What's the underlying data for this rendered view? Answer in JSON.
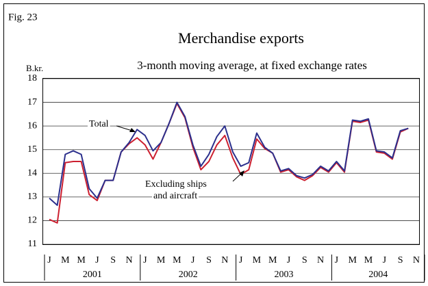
{
  "chart_data": {
    "type": "line",
    "figure_label": "Fig. 23",
    "title": "Merchandise exports",
    "subtitle": "3-month moving average, at fixed exchange rates",
    "y_unit": "B.kr.",
    "categories": [
      "J",
      null,
      "M",
      null,
      "M",
      null,
      "J",
      null,
      "S",
      null,
      "N",
      null,
      "J",
      null,
      "M",
      null,
      "M",
      null,
      "J",
      null,
      "S",
      null,
      "N",
      null,
      "J",
      null,
      "M",
      null,
      "M",
      null,
      "J",
      null,
      "S",
      null,
      "N",
      null,
      "J",
      null,
      "M",
      null,
      "M",
      null,
      "J",
      null,
      "S",
      null,
      "N"
    ],
    "years": [
      "2001",
      "2002",
      "2003",
      "2004"
    ],
    "series": [
      {
        "color": "#2b2f8c",
        "values": [
          12.95,
          12.65,
          14.8,
          14.95,
          14.8,
          13.35,
          12.95,
          13.7,
          13.7,
          14.9,
          15.3,
          15.85,
          15.6,
          14.95,
          15.3,
          16.1,
          17.0,
          16.4,
          15.2,
          14.3,
          14.8,
          15.55,
          16.0,
          14.9,
          14.3,
          14.45,
          15.7,
          15.1,
          14.85,
          14.1,
          14.2,
          13.9,
          13.8,
          13.95,
          14.3,
          14.1,
          14.5,
          14.1,
          16.25,
          16.2,
          16.3,
          14.95,
          14.9,
          14.65,
          15.8,
          15.9,
          null
        ]
      },
      {
        "color": "#cc1f2f",
        "values": [
          12.05,
          11.9,
          14.45,
          14.5,
          14.5,
          13.1,
          12.85,
          13.7,
          13.7,
          14.9,
          15.25,
          15.5,
          15.2,
          14.6,
          15.3,
          16.1,
          16.95,
          16.35,
          15.1,
          14.15,
          14.5,
          15.2,
          15.6,
          14.65,
          13.95,
          14.15,
          15.45,
          15.05,
          14.85,
          14.05,
          14.15,
          13.85,
          13.7,
          13.9,
          14.25,
          14.05,
          14.45,
          14.05,
          16.2,
          16.15,
          16.25,
          14.9,
          14.85,
          14.6,
          15.75,
          15.9,
          null
        ]
      }
    ],
    "annotations": [
      {
        "lines": [
          "Total"
        ]
      },
      {
        "lines": [
          "Excluding ships",
          "and aircraft"
        ]
      }
    ],
    "ylim": [
      11,
      18
    ],
    "yticks": [
      11,
      12,
      13,
      14,
      15,
      16,
      17,
      18
    ],
    "grid": true
  }
}
